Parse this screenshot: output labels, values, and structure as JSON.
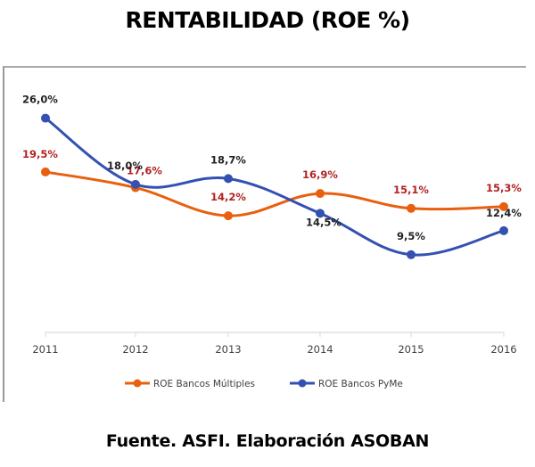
{
  "chart_data": {
    "type": "line",
    "title": "RENTABILIDAD (ROE %)",
    "source": "Fuente. ASFI. Elaboración ASOBAN",
    "xlabel": "",
    "ylabel": "",
    "categories": [
      "2011",
      "2012",
      "2013",
      "2014",
      "2015",
      "2016"
    ],
    "ylim": [
      0,
      28
    ],
    "grid": false,
    "legend_position": "bottom",
    "series": [
      {
        "name": "ROE Bancos Múltiples",
        "color": "#e8600f",
        "label_color": "#b22222",
        "values": [
          19.5,
          17.6,
          14.2,
          16.9,
          15.1,
          15.3
        ],
        "labels": [
          "19,5%",
          "17,6%",
          "14,2%",
          "16,9%",
          "15,1%",
          "15,3%"
        ]
      },
      {
        "name": "ROE Bancos PyMe",
        "color": "#3451b2",
        "label_color": "#222222",
        "values": [
          26.0,
          18.0,
          18.7,
          14.5,
          9.5,
          12.4
        ],
        "labels": [
          "26,0%",
          "18,0%",
          "18,7%",
          "14,5%",
          "9,5%",
          "12,4%"
        ]
      }
    ]
  }
}
